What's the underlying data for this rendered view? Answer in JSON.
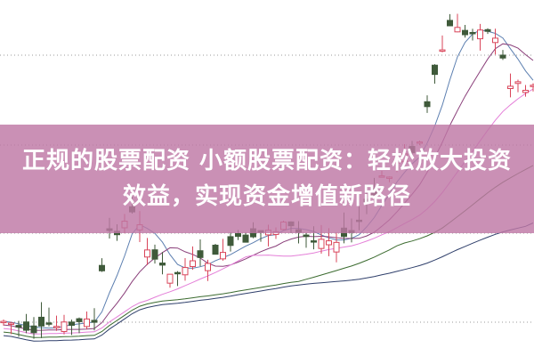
{
  "banner": {
    "title": "正规的股票配资 小额股票配资：轻松放大投资效益，实现资金增值新路径"
  },
  "colors": {
    "up_candle": "#d9455a",
    "down_candle": "#3f5a3a",
    "banner_overlay": "#be78a5",
    "ma_lines": [
      "#5c7fb0",
      "#8a3f7a",
      "#e47fd8",
      "#3b6b2f",
      "#2f3f6b"
    ]
  }
}
